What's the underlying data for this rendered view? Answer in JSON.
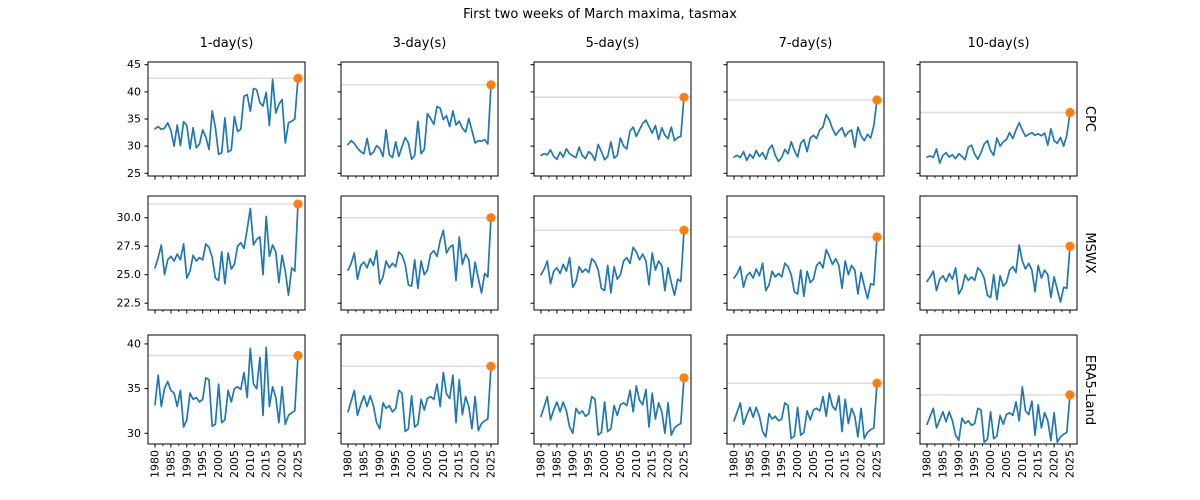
{
  "figure": {
    "title": "First two weeks of March maxima, tasmax"
  },
  "chart_data": {
    "type": "line",
    "title": "First two weeks of March maxima, tasmax",
    "x": {
      "start": 1980,
      "end": 2025,
      "lim": [
        1977.8,
        2027.2
      ],
      "ticks": [
        1980,
        1985,
        1990,
        1995,
        2000,
        2005,
        2010,
        2015,
        2020,
        2025
      ],
      "minor_ticks": [
        1982.5,
        1987.5,
        1992.5,
        1997.5,
        2002.5,
        2007.5,
        2012.5,
        2017.5,
        2022.5
      ]
    },
    "columns": [
      "1-day(s)",
      "3-day(s)",
      "5-day(s)",
      "7-day(s)",
      "10-day(s)"
    ],
    "rows": [
      {
        "label": "CPC",
        "ylim": [
          24.5,
          45.5
        ],
        "yticks": [
          25,
          30,
          35,
          40,
          45
        ],
        "ytick_labels": [
          "25",
          "30",
          "35",
          "40",
          "45"
        ]
      },
      {
        "label": "MSWX",
        "ylim": [
          21.9,
          31.9
        ],
        "yticks": [
          22.5,
          25.0,
          27.5,
          30.0
        ],
        "ytick_labels": [
          "22.5",
          "25.0",
          "27.5",
          "30.0"
        ]
      },
      {
        "label": "ERA5-Land",
        "ylim": [
          28.8,
          41.0
        ],
        "yticks": [
          30,
          35,
          40
        ],
        "ytick_labels": [
          "30",
          "35",
          "40"
        ]
      }
    ],
    "colors": {
      "series": "#1f77b4",
      "highlight": "#ff7f0e",
      "record_line": "#dddddd",
      "axis": "#000000"
    },
    "highlight_year": 2025,
    "panels": [
      {
        "row": "CPC",
        "col": "1-day(s)",
        "record_line": 42.5,
        "values": [
          33.2,
          33.6,
          33.1,
          33.3,
          34.3,
          32.9,
          30.0,
          33.9,
          30.1,
          34.5,
          33.8,
          29.5,
          33.4,
          29.7,
          30.4,
          33.0,
          31.7,
          29.4,
          36.5,
          33.4,
          28.5,
          28.8,
          35.2,
          28.9,
          29.3,
          35.5,
          32.7,
          33.1,
          39.2,
          39.5,
          36.4,
          40.6,
          40.4,
          38.0,
          37.4,
          39.9,
          33.8,
          42.3,
          36.1,
          37.7,
          38.6,
          30.6,
          34.3,
          34.6,
          35.0,
          42.5
        ]
      },
      {
        "row": "CPC",
        "col": "3-day(s)",
        "record_line": 41.3,
        "values": [
          30.3,
          31.0,
          30.5,
          29.6,
          29.0,
          28.6,
          31.4,
          28.4,
          28.9,
          30.1,
          29.6,
          28.1,
          33.0,
          28.4,
          27.9,
          30.8,
          28.1,
          29.9,
          31.6,
          30.6,
          27.6,
          28.3,
          34.6,
          28.6,
          29.4,
          36.0,
          35.1,
          34.0,
          37.3,
          37.0,
          34.9,
          35.6,
          33.6,
          36.5,
          33.9,
          34.6,
          33.3,
          32.6,
          35.1,
          32.9,
          30.6,
          31.0,
          30.9,
          31.2,
          30.4,
          41.3
        ]
      },
      {
        "row": "CPC",
        "col": "5-day(s)",
        "record_line": 39.0,
        "values": [
          28.3,
          28.6,
          28.4,
          29.3,
          28.1,
          27.6,
          28.9,
          28.0,
          29.5,
          28.6,
          28.2,
          27.9,
          29.8,
          28.3,
          27.7,
          29.0,
          28.5,
          27.4,
          30.3,
          29.0,
          27.5,
          28.1,
          30.8,
          27.8,
          28.3,
          31.5,
          30.0,
          29.5,
          32.8,
          33.5,
          31.8,
          33.0,
          34.2,
          34.8,
          33.6,
          32.4,
          33.8,
          31.2,
          33.4,
          32.0,
          31.4,
          33.5,
          31.0,
          31.6,
          31.8,
          39.0
        ]
      },
      {
        "row": "CPC",
        "col": "7-day(s)",
        "record_line": 38.5,
        "values": [
          28.0,
          28.3,
          27.9,
          29.0,
          27.4,
          28.5,
          27.8,
          29.2,
          28.1,
          28.8,
          27.6,
          29.5,
          30.2,
          28.3,
          27.2,
          27.9,
          29.4,
          28.6,
          30.8,
          29.2,
          28.0,
          30.5,
          31.2,
          29.0,
          31.5,
          32.0,
          31.4,
          33.0,
          33.5,
          35.8,
          34.8,
          33.2,
          32.0,
          32.8,
          33.4,
          31.8,
          32.6,
          33.0,
          29.8,
          33.5,
          31.9,
          31.0,
          32.2,
          31.5,
          33.8,
          38.5
        ]
      },
      {
        "row": "CPC",
        "col": "10-day(s)",
        "record_line": 36.2,
        "values": [
          28.0,
          28.2,
          27.9,
          29.5,
          26.9,
          28.3,
          28.8,
          28.0,
          28.4,
          27.7,
          28.6,
          28.1,
          27.5,
          29.8,
          30.2,
          28.5,
          27.6,
          28.8,
          30.4,
          31.0,
          29.2,
          28.3,
          31.5,
          30.0,
          30.8,
          31.2,
          32.5,
          31.4,
          33.0,
          34.3,
          33.0,
          31.8,
          32.2,
          32.5,
          32.0,
          32.3,
          31.9,
          32.4,
          30.2,
          33.2,
          31.0,
          30.5,
          31.6,
          30.0,
          32.0,
          36.2
        ]
      },
      {
        "row": "MSWX",
        "col": "1-day(s)",
        "record_line": 31.2,
        "values": [
          25.6,
          26.5,
          27.6,
          25.0,
          26.3,
          26.6,
          26.2,
          26.8,
          26.3,
          27.7,
          24.7,
          25.3,
          26.7,
          26.2,
          26.5,
          26.3,
          27.7,
          27.4,
          26.5,
          24.7,
          24.5,
          27.0,
          24.2,
          26.9,
          25.5,
          25.9,
          27.5,
          27.8,
          27.3,
          29.0,
          30.8,
          27.6,
          28.1,
          28.3,
          25.0,
          30.1,
          26.6,
          27.6,
          27.0,
          24.3,
          26.7,
          25.3,
          23.2,
          25.6,
          25.3,
          31.2
        ]
      },
      {
        "row": "MSWX",
        "col": "3-day(s)",
        "record_line": 30.0,
        "values": [
          25.4,
          26.0,
          26.9,
          24.6,
          25.8,
          26.1,
          25.6,
          26.4,
          25.8,
          27.1,
          24.2,
          24.8,
          26.2,
          25.6,
          26.0,
          25.7,
          27.0,
          26.7,
          25.9,
          24.1,
          24.0,
          26.3,
          23.8,
          26.2,
          25.0,
          25.4,
          26.8,
          27.1,
          26.6,
          28.0,
          28.9,
          26.9,
          27.4,
          27.6,
          24.5,
          28.3,
          25.9,
          26.8,
          26.3,
          23.9,
          26.1,
          24.7,
          23.4,
          25.1,
          24.8,
          30.0
        ]
      },
      {
        "row": "MSWX",
        "col": "5-day(s)",
        "record_line": 28.9,
        "values": [
          25.0,
          25.5,
          26.2,
          24.2,
          25.3,
          25.6,
          25.1,
          25.9,
          25.3,
          26.5,
          23.9,
          24.4,
          25.7,
          25.2,
          25.5,
          25.2,
          26.4,
          26.1,
          25.4,
          23.8,
          23.6,
          25.8,
          23.4,
          25.7,
          24.6,
          25.0,
          26.2,
          26.5,
          26.0,
          27.4,
          27.0,
          26.3,
          26.8,
          26.2,
          24.1,
          26.9,
          25.4,
          26.2,
          25.8,
          23.6,
          25.6,
          24.3,
          23.2,
          24.6,
          24.4,
          28.9
        ]
      },
      {
        "row": "MSWX",
        "col": "7-day(s)",
        "record_line": 28.3,
        "values": [
          24.7,
          25.1,
          25.7,
          23.9,
          24.9,
          25.2,
          24.7,
          25.5,
          24.9,
          26.0,
          23.6,
          24.1,
          25.3,
          24.8,
          25.1,
          24.8,
          26.0,
          25.7,
          25.0,
          23.5,
          23.3,
          25.4,
          23.1,
          25.3,
          24.3,
          24.6,
          25.8,
          26.1,
          25.6,
          27.2,
          26.6,
          25.9,
          26.4,
          25.8,
          23.8,
          26.2,
          25.0,
          25.8,
          25.4,
          23.3,
          25.2,
          24.0,
          22.9,
          24.2,
          24.1,
          28.3
        ]
      },
      {
        "row": "MSWX",
        "col": "10-day(s)",
        "record_line": 27.5,
        "values": [
          24.4,
          24.8,
          25.3,
          23.6,
          24.6,
          24.9,
          24.4,
          25.1,
          24.6,
          25.6,
          23.3,
          23.8,
          25.0,
          24.5,
          24.8,
          24.5,
          25.6,
          25.3,
          24.7,
          23.2,
          23.0,
          25.0,
          22.8,
          24.9,
          24.0,
          24.3,
          25.4,
          25.7,
          25.2,
          27.6,
          26.2,
          25.5,
          26.0,
          25.4,
          23.5,
          25.8,
          24.7,
          25.4,
          25.0,
          23.0,
          24.8,
          23.7,
          22.6,
          23.9,
          23.8,
          27.5
        ]
      },
      {
        "row": "ERA5-Land",
        "col": "1-day(s)",
        "record_line": 38.7,
        "values": [
          33.2,
          36.5,
          33.0,
          35.0,
          35.8,
          34.8,
          34.5,
          33.0,
          34.8,
          30.7,
          31.5,
          34.5,
          33.8,
          34.0,
          33.5,
          33.8,
          36.2,
          36.0,
          30.8,
          31.0,
          35.5,
          31.2,
          31.5,
          34.8,
          33.5,
          35.0,
          35.2,
          34.9,
          36.8,
          34.0,
          39.5,
          35.5,
          35.0,
          38.5,
          32.0,
          39.6,
          33.0,
          35.2,
          34.0,
          31.2,
          35.2,
          31.0,
          32.0,
          32.3,
          32.5,
          38.7
        ]
      },
      {
        "row": "ERA5-Land",
        "col": "3-day(s)",
        "record_line": 37.5,
        "values": [
          32.4,
          33.6,
          34.8,
          32.0,
          33.2,
          34.2,
          33.0,
          34.2,
          33.1,
          31.2,
          30.5,
          33.4,
          32.8,
          33.1,
          32.4,
          32.8,
          34.8,
          34.5,
          30.2,
          30.5,
          34.2,
          30.7,
          31.0,
          33.8,
          32.6,
          33.9,
          34.1,
          33.8,
          35.5,
          33.0,
          36.8,
          34.4,
          33.9,
          36.5,
          31.2,
          36.0,
          32.1,
          34.1,
          33.0,
          30.5,
          34.1,
          30.3,
          31.1,
          31.4,
          31.6,
          37.5
        ]
      },
      {
        "row": "ERA5-Land",
        "col": "5-day(s)",
        "record_line": 36.2,
        "values": [
          31.9,
          33.0,
          34.1,
          31.5,
          32.6,
          33.5,
          32.4,
          33.5,
          32.5,
          30.7,
          30.0,
          32.8,
          32.2,
          32.5,
          31.9,
          32.2,
          34.1,
          33.8,
          29.8,
          30.1,
          33.5,
          30.2,
          30.5,
          33.1,
          32.0,
          33.2,
          33.4,
          33.1,
          34.8,
          32.4,
          35.3,
          33.7,
          33.2,
          34.9,
          30.7,
          34.5,
          31.6,
          33.4,
          32.4,
          30.0,
          33.4,
          29.8,
          30.6,
          30.9,
          31.1,
          36.2
        ]
      },
      {
        "row": "ERA5-Land",
        "col": "7-day(s)",
        "record_line": 35.6,
        "values": [
          31.4,
          32.4,
          33.4,
          31.0,
          32.0,
          32.9,
          31.8,
          32.9,
          31.9,
          30.2,
          29.6,
          32.2,
          31.6,
          31.9,
          31.4,
          31.6,
          33.4,
          33.1,
          29.4,
          29.7,
          32.9,
          29.8,
          30.1,
          32.5,
          31.5,
          32.6,
          32.8,
          32.5,
          34.1,
          31.9,
          34.5,
          33.0,
          32.6,
          34.2,
          30.2,
          33.8,
          31.1,
          32.8,
          31.9,
          29.6,
          32.8,
          29.4,
          30.1,
          30.4,
          30.6,
          35.6
        ]
      },
      {
        "row": "ERA5-Land",
        "col": "10-day(s)",
        "record_line": 34.3,
        "values": [
          31.0,
          31.9,
          32.8,
          30.6,
          31.5,
          32.4,
          31.3,
          32.4,
          31.4,
          29.8,
          29.2,
          31.7,
          31.1,
          31.4,
          30.9,
          31.1,
          32.8,
          32.6,
          29.0,
          29.3,
          32.4,
          29.4,
          29.7,
          32.0,
          31.0,
          32.1,
          32.3,
          32.0,
          33.5,
          31.4,
          35.2,
          32.5,
          32.1,
          33.6,
          29.8,
          33.2,
          30.6,
          32.3,
          31.4,
          29.2,
          32.3,
          29.0,
          29.6,
          29.9,
          30.1,
          34.3
        ]
      }
    ]
  }
}
